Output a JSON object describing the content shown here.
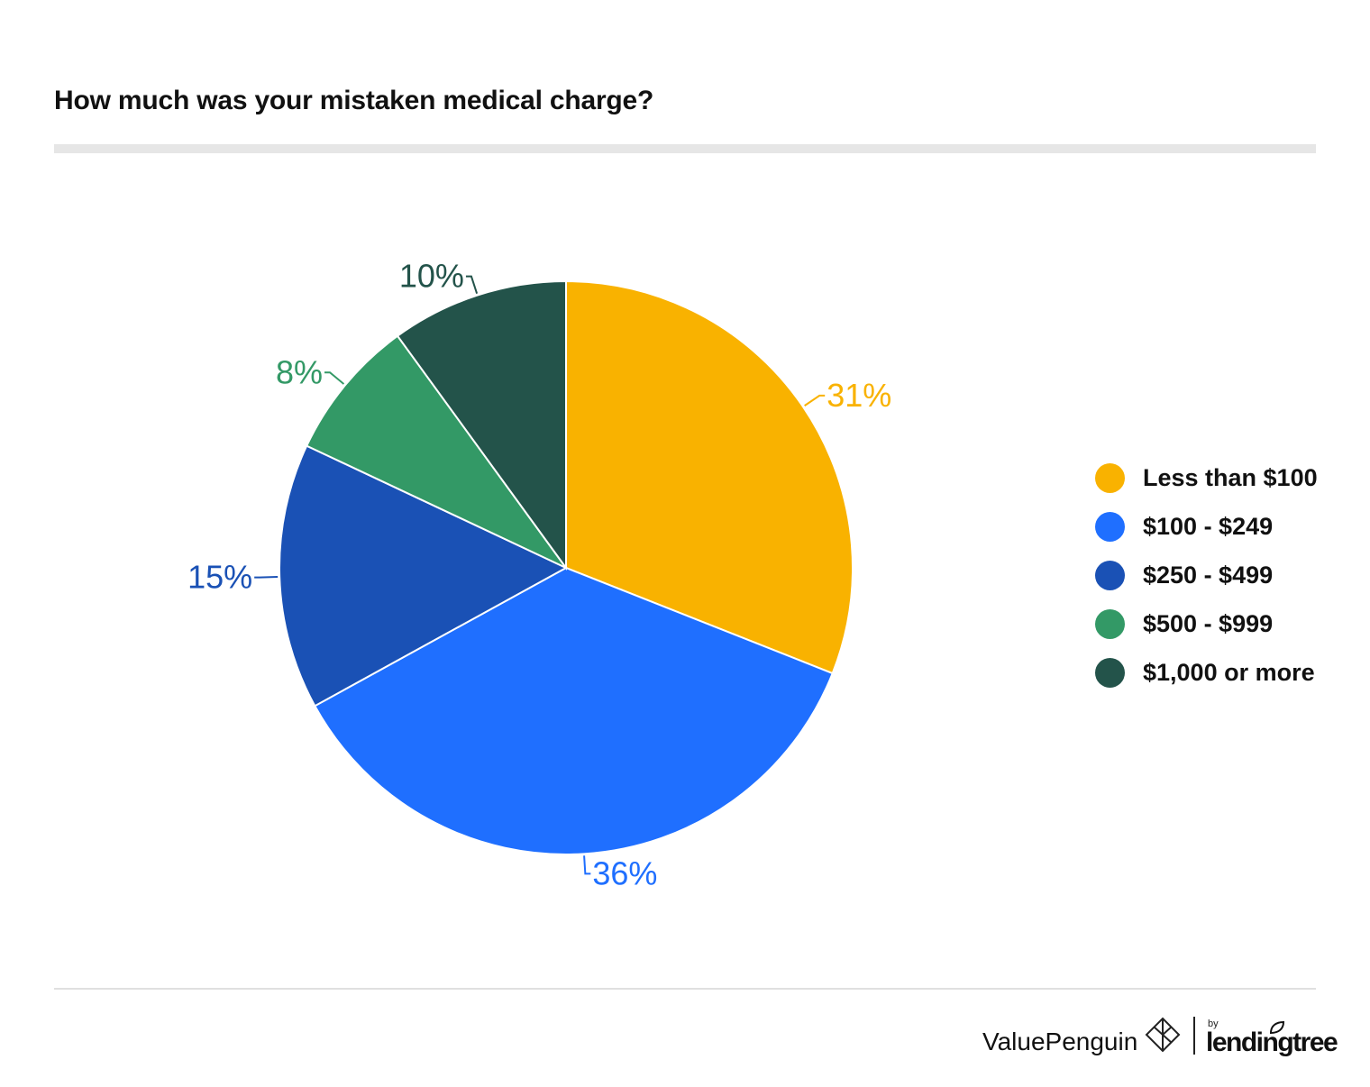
{
  "title": "How much was your mistaken medical charge?",
  "chart_data": {
    "type": "pie",
    "title": "How much was your mistaken medical charge?",
    "slices": [
      {
        "label": "Less than $100",
        "value": 31,
        "display": "31%",
        "color": "#F9B200"
      },
      {
        "label": "$100 - $249",
        "value": 36,
        "display": "36%",
        "color": "#1F6FFF"
      },
      {
        "label": "$250 - $499",
        "value": 15,
        "display": "15%",
        "color": "#1A51B5"
      },
      {
        "label": "$500 - $999",
        "value": 8,
        "display": "8%",
        "color": "#339966"
      },
      {
        "label": "$1,000 or more",
        "value": 10,
        "display": "10%",
        "color": "#23534A"
      }
    ],
    "legend_position": "right"
  },
  "footer": {
    "brand": "ValuePenguin",
    "by": "by",
    "partner": "lendingtree"
  }
}
